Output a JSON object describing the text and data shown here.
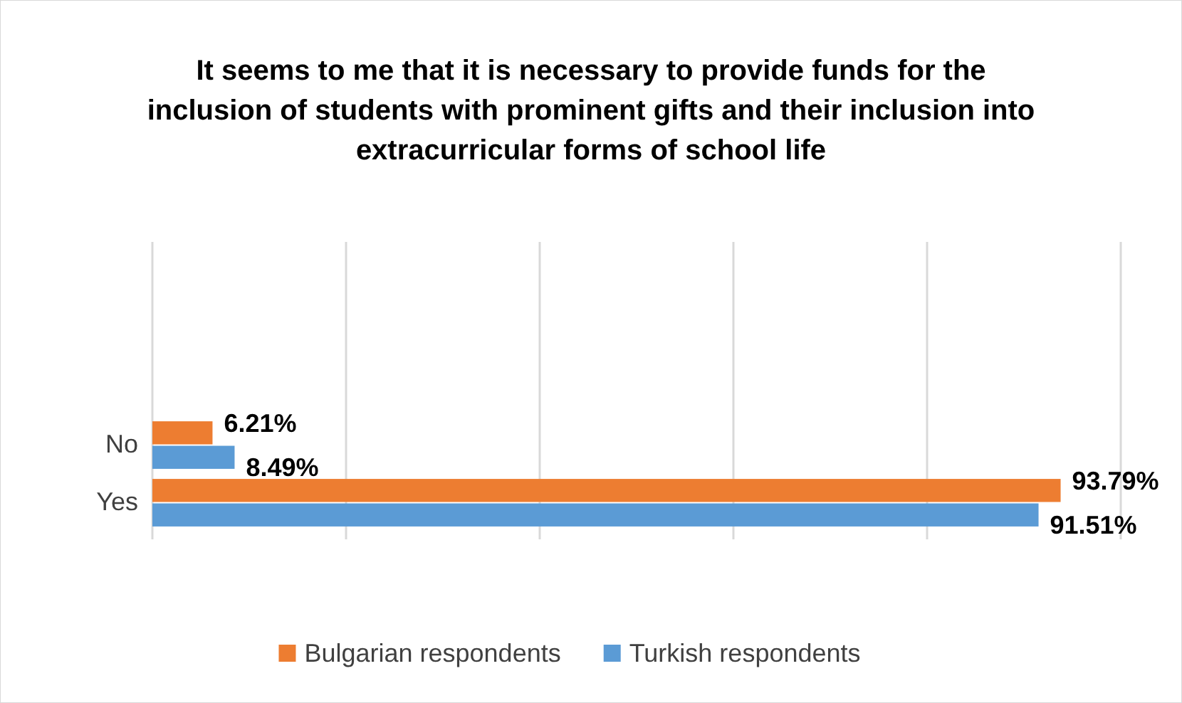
{
  "chart_data": {
    "type": "bar",
    "orientation": "horizontal",
    "title": "It seems to me that it is necessary to provide funds for the inclusion of students with prominent gifts and their inclusion into extracurricular forms of school life",
    "categories": [
      "No",
      "Yes"
    ],
    "series": [
      {
        "name": "Bulgarian respondents",
        "color": "#ed7d31",
        "values": [
          6.21,
          93.79
        ],
        "value_labels": [
          "6.21%",
          "93.79%"
        ]
      },
      {
        "name": "Turkish respondents",
        "color": "#5b9bd5",
        "values": [
          8.49,
          91.51
        ],
        "value_labels": [
          "8.49%",
          "91.51%"
        ]
      }
    ],
    "xlim": [
      0,
      100
    ],
    "xticks": [
      {
        "value": 0,
        "label": null
      },
      {
        "value": 20,
        "label": null
      },
      {
        "value": 40,
        "label": null
      },
      {
        "value": 60,
        "label": null
      },
      {
        "value": 80,
        "label": null
      },
      {
        "value": 100,
        "label": null
      }
    ],
    "grid": "x",
    "legend": "bottom",
    "tick_labels": "y"
  }
}
